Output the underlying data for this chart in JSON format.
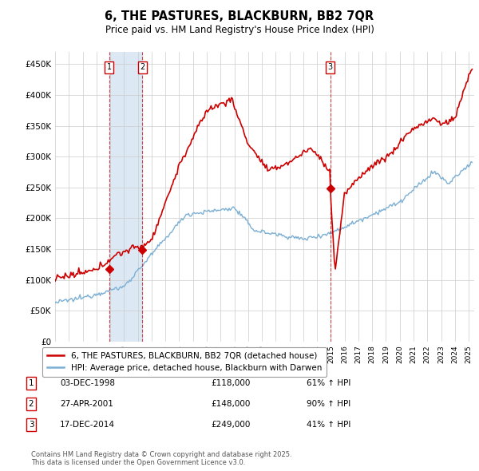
{
  "title": "6, THE PASTURES, BLACKBURN, BB2 7QR",
  "subtitle": "Price paid vs. HM Land Registry's House Price Index (HPI)",
  "ylim": [
    0,
    470000
  ],
  "yticks": [
    0,
    50000,
    100000,
    150000,
    200000,
    250000,
    300000,
    350000,
    400000,
    450000
  ],
  "ytick_labels": [
    "£0",
    "£50K",
    "£100K",
    "£150K",
    "£200K",
    "£250K",
    "£300K",
    "£350K",
    "£400K",
    "£450K"
  ],
  "red_color": "#cc0000",
  "blue_color": "#7bafd4",
  "shade_color": "#dce9f5",
  "legend_red_label": "6, THE PASTURES, BLACKBURN, BB2 7QR (detached house)",
  "legend_blue_label": "HPI: Average price, detached house, Blackburn with Darwen",
  "transactions": [
    {
      "num": 1,
      "date": "03-DEC-1998",
      "price": "£118,000",
      "pct": "61% ↑ HPI"
    },
    {
      "num": 2,
      "date": "27-APR-2001",
      "price": "£148,000",
      "pct": "90% ↑ HPI"
    },
    {
      "num": 3,
      "date": "17-DEC-2014",
      "price": "£249,000",
      "pct": "41% ↑ HPI"
    }
  ],
  "sale_years": [
    1998.92,
    2001.32,
    2014.96
  ],
  "sale_prices_red": [
    118000,
    148000,
    249000
  ],
  "footnote1": "Contains HM Land Registry data © Crown copyright and database right 2025.",
  "footnote2": "This data is licensed under the Open Government Licence v3.0."
}
